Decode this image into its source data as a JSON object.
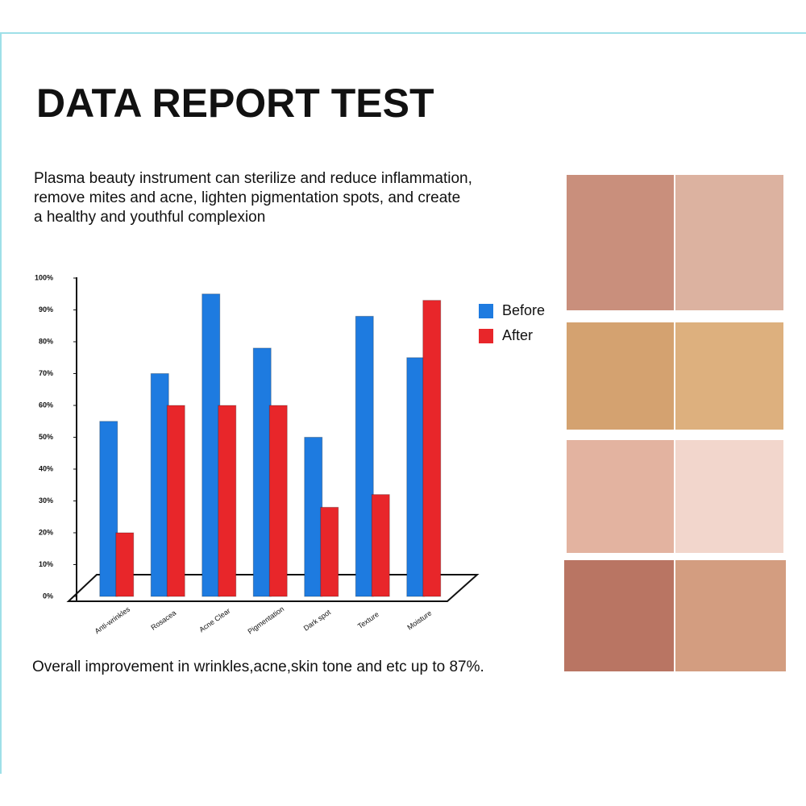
{
  "chart_data": {
    "type": "bar",
    "title": "DATA REPORT TEST",
    "subtitle": [
      "Plasma beauty instrument can sterilize and reduce inflammation,",
      "remove mites and acne, lighten pigmentation spots, and create",
      "a healthy and youthful complexion"
    ],
    "annotation": "Overall improvement in wrinkles,acne,skin tone and etc up to 87%.",
    "categories": [
      "Anti-wrinkles",
      "Rosacea",
      "Acne Clear",
      "Pigmentation",
      "Dark spot",
      "Texture",
      "Moisture"
    ],
    "series": [
      {
        "name": "Before",
        "color": "#1e7be0",
        "values": [
          55,
          70,
          95,
          78,
          50,
          88,
          75
        ]
      },
      {
        "name": "After",
        "color": "#e8262a",
        "values": [
          20,
          60,
          60,
          60,
          28,
          32,
          93
        ]
      }
    ],
    "ylim": [
      0,
      100
    ],
    "yticks": [
      {
        "value": 0,
        "label": "0%"
      },
      {
        "value": 10,
        "label": "10%"
      },
      {
        "value": 20,
        "label": "20%"
      },
      {
        "value": 30,
        "label": "30%"
      },
      {
        "value": 40,
        "label": "40%"
      },
      {
        "value": 50,
        "label": "50%"
      },
      {
        "value": 60,
        "label": "60%"
      },
      {
        "value": 70,
        "label": "70%"
      },
      {
        "value": 80,
        "label": "80%"
      },
      {
        "value": 90,
        "label": "90%"
      },
      {
        "value": 100,
        "label": "100%"
      }
    ],
    "legend": "right"
  }
}
